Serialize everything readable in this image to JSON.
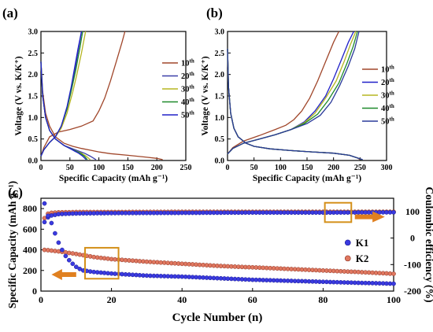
{
  "chart_data": [
    {
      "panel": "(a)",
      "type": "line",
      "xlabel": "Specific Capacity (mAh g⁻¹)",
      "ylabel": "Voltage (V vs. K/K⁺)",
      "xlim": [
        0,
        250
      ],
      "ylim": [
        0,
        3.0
      ],
      "xticks": [
        "0",
        "50",
        "100",
        "150",
        "200",
        "250"
      ],
      "yticks": [
        "0.0",
        "0.5",
        "1.0",
        "1.5",
        "2.0",
        "2.5",
        "3.0"
      ],
      "legend_position": "right-middle",
      "series": [
        {
          "name": "10th",
          "color": "#a0462a",
          "discharge": {
            "x": [
              0,
              3,
              8,
              15,
              25,
              40,
              55,
              70,
              85,
              100,
              120,
              150,
              180,
              200,
              210
            ],
            "y": [
              2.3,
              1.6,
              1.1,
              0.8,
              0.55,
              0.4,
              0.33,
              0.28,
              0.24,
              0.2,
              0.16,
              0.12,
              0.08,
              0.05,
              0.02
            ]
          },
          "charge": {
            "x": [
              0,
              5,
              15,
              30,
              50,
              70,
              90,
              100,
              110,
              120,
              130,
              140,
              145
            ],
            "y": [
              0.1,
              0.3,
              0.55,
              0.66,
              0.72,
              0.8,
              0.92,
              1.15,
              1.45,
              1.85,
              2.3,
              2.75,
              3.0
            ]
          }
        },
        {
          "name": "20th",
          "color": "#3a3fa8",
          "discharge": {
            "x": [
              0,
              3,
              8,
              15,
              25,
              40,
              55,
              65,
              75,
              85,
              95
            ],
            "y": [
              2.3,
              1.5,
              1.0,
              0.7,
              0.5,
              0.35,
              0.27,
              0.22,
              0.17,
              0.1,
              0.02
            ]
          },
          "charge": {
            "x": [
              0,
              5,
              15,
              25,
              35,
              45,
              55,
              60,
              65,
              70
            ],
            "y": [
              0.1,
              0.25,
              0.42,
              0.55,
              0.8,
              1.2,
              1.8,
              2.2,
              2.6,
              3.0
            ]
          }
        },
        {
          "name": "30th",
          "color": "#b5b521",
          "discharge": {
            "x": [
              0,
              3,
              8,
              15,
              25,
              40,
              50,
              60,
              70,
              78,
              85
            ],
            "y": [
              2.3,
              1.5,
              1.0,
              0.7,
              0.5,
              0.35,
              0.28,
              0.22,
              0.17,
              0.1,
              0.02
            ]
          },
          "charge": {
            "x": [
              0,
              5,
              15,
              25,
              35,
              45,
              55,
              62,
              70,
              77
            ],
            "y": [
              0.1,
              0.25,
              0.42,
              0.55,
              0.75,
              1.1,
              1.6,
              2.0,
              2.5,
              3.0
            ]
          }
        },
        {
          "name": "40th",
          "color": "#1f8a2a",
          "discharge": {
            "x": [
              0,
              3,
              8,
              15,
              25,
              40,
              50,
              60,
              68,
              75,
              80
            ],
            "y": [
              2.3,
              1.5,
              1.0,
              0.7,
              0.5,
              0.35,
              0.28,
              0.22,
              0.17,
              0.1,
              0.02
            ]
          },
          "charge": {
            "x": [
              0,
              5,
              15,
              25,
              35,
              45,
              52,
              60,
              67,
              72
            ],
            "y": [
              0.1,
              0.25,
              0.42,
              0.55,
              0.8,
              1.2,
              1.6,
              2.1,
              2.6,
              3.0
            ]
          }
        },
        {
          "name": "50th",
          "color": "#2020c8",
          "discharge": {
            "x": [
              0,
              3,
              8,
              15,
              25,
              40,
              50,
              58,
              65,
              72,
              78
            ],
            "y": [
              2.3,
              1.5,
              1.0,
              0.7,
              0.5,
              0.35,
              0.28,
              0.22,
              0.17,
              0.1,
              0.02
            ]
          },
          "charge": {
            "x": [
              0,
              5,
              15,
              25,
              35,
              45,
              52,
              58,
              64,
              70
            ],
            "y": [
              0.1,
              0.25,
              0.42,
              0.55,
              0.8,
              1.25,
              1.7,
              2.15,
              2.6,
              3.0
            ]
          }
        }
      ]
    },
    {
      "panel": "(b)",
      "type": "line",
      "xlabel": "Specific Capacity (mAh g⁻¹)",
      "ylabel": "Voltage (V vs. K/K⁺)",
      "xlim": [
        0,
        300
      ],
      "ylim": [
        0,
        3.0
      ],
      "xticks": [
        "0",
        "50",
        "100",
        "150",
        "200",
        "250",
        "300"
      ],
      "yticks": [
        "0.0",
        "0.5",
        "1.0",
        "1.5",
        "2.0",
        "2.5",
        "3.0"
      ],
      "legend_position": "right-middle",
      "series": [
        {
          "name": "10th",
          "color": "#a0462a",
          "discharge": {
            "x": [
              0,
              2,
              6,
              12,
              20,
              35,
              50,
              80,
              120,
              160,
              200,
              230,
              245,
              250
            ],
            "y": [
              2.6,
              1.7,
              1.1,
              0.75,
              0.55,
              0.4,
              0.33,
              0.27,
              0.23,
              0.2,
              0.17,
              0.12,
              0.06,
              0.02
            ]
          },
          "charge": {
            "x": [
              0,
              10,
              30,
              60,
              90,
              110,
              125,
              140,
              155,
              170,
              185,
              200,
              210
            ],
            "y": [
              0.15,
              0.3,
              0.45,
              0.58,
              0.72,
              0.82,
              0.95,
              1.15,
              1.45,
              1.85,
              2.3,
              2.75,
              3.0
            ]
          }
        },
        {
          "name": "20th",
          "color": "#2020c8",
          "discharge": {
            "x": [
              0,
              2,
              6,
              12,
              20,
              35,
              50,
              80,
              120,
              160,
              200,
              230,
              245,
              252
            ],
            "y": [
              2.6,
              1.7,
              1.1,
              0.75,
              0.55,
              0.4,
              0.33,
              0.27,
              0.23,
              0.2,
              0.17,
              0.12,
              0.06,
              0.02
            ]
          },
          "charge": {
            "x": [
              0,
              10,
              30,
              60,
              90,
              120,
              145,
              165,
              185,
              200,
              215,
              228,
              238
            ],
            "y": [
              0.15,
              0.28,
              0.4,
              0.5,
              0.6,
              0.72,
              0.9,
              1.15,
              1.5,
              1.9,
              2.35,
              2.75,
              3.0
            ]
          }
        },
        {
          "name": "30th",
          "color": "#b5b521",
          "discharge": {
            "x": [
              0,
              2,
              6,
              12,
              20,
              35,
              50,
              80,
              120,
              160,
              200,
              230,
              245,
              253
            ],
            "y": [
              2.6,
              1.7,
              1.1,
              0.75,
              0.55,
              0.4,
              0.33,
              0.27,
              0.23,
              0.2,
              0.17,
              0.12,
              0.06,
              0.02
            ]
          },
          "charge": {
            "x": [
              0,
              10,
              30,
              60,
              90,
              120,
              145,
              165,
              185,
              205,
              220,
              232,
              242
            ],
            "y": [
              0.15,
              0.28,
              0.4,
              0.5,
              0.6,
              0.72,
              0.88,
              1.1,
              1.45,
              1.85,
              2.3,
              2.7,
              3.0
            ]
          }
        },
        {
          "name": "40th",
          "color": "#1f8a2a",
          "discharge": {
            "x": [
              0,
              2,
              6,
              12,
              20,
              35,
              50,
              80,
              120,
              160,
              200,
              230,
              245,
              254
            ],
            "y": [
              2.6,
              1.7,
              1.1,
              0.75,
              0.55,
              0.4,
              0.33,
              0.27,
              0.23,
              0.2,
              0.17,
              0.12,
              0.06,
              0.02
            ]
          },
          "charge": {
            "x": [
              0,
              10,
              30,
              60,
              90,
              120,
              145,
              170,
              190,
              210,
              225,
              237,
              245
            ],
            "y": [
              0.15,
              0.28,
              0.4,
              0.5,
              0.6,
              0.72,
              0.86,
              1.08,
              1.4,
              1.8,
              2.25,
              2.65,
              3.0
            ]
          }
        },
        {
          "name": "50th",
          "color": "#2a3a9a",
          "discharge": {
            "x": [
              0,
              2,
              6,
              12,
              20,
              35,
              50,
              80,
              120,
              160,
              200,
              230,
              245,
              255
            ],
            "y": [
              2.6,
              1.7,
              1.1,
              0.75,
              0.55,
              0.4,
              0.33,
              0.27,
              0.23,
              0.2,
              0.17,
              0.12,
              0.06,
              0.02
            ]
          },
          "charge": {
            "x": [
              0,
              10,
              30,
              60,
              90,
              120,
              150,
              175,
              195,
              212,
              228,
              240,
              248
            ],
            "y": [
              0.15,
              0.28,
              0.4,
              0.5,
              0.6,
              0.72,
              0.86,
              1.05,
              1.35,
              1.75,
              2.2,
              2.6,
              3.0
            ]
          }
        }
      ]
    },
    {
      "panel": "(c)",
      "type": "scatter",
      "xlabel": "Cycle Number (n)",
      "ylabel": "Specific Capacity (mAh g⁻¹)",
      "y2label": "Coulombic efficiency (%)",
      "xlim": [
        0,
        100
      ],
      "ylim": [
        0,
        900
      ],
      "y2lim": [
        -200,
        150
      ],
      "xticks": [
        "0",
        "20",
        "40",
        "60",
        "80",
        "100"
      ],
      "yticks": [
        "0",
        "200",
        "400",
        "600",
        "800"
      ],
      "y2ticks": [
        "-200",
        "-100",
        "0",
        "100"
      ],
      "legend_position": "right-middle",
      "series": [
        {
          "name": "K1",
          "color": "#3a3ae0",
          "marker_edge": "#1c1c90",
          "capacity_points": [
            [
              1,
              850
            ],
            [
              2,
              730
            ],
            [
              3,
              660
            ],
            [
              4,
              560
            ],
            [
              5,
              470
            ],
            [
              6,
              400
            ],
            [
              7,
              340
            ],
            [
              8,
              300
            ],
            [
              9,
              265
            ],
            [
              10,
              235
            ],
            [
              11,
              215
            ],
            [
              12,
              200
            ],
            [
              15,
              185
            ],
            [
              20,
              170
            ],
            [
              30,
              150
            ],
            [
              40,
              140
            ],
            [
              50,
              125
            ],
            [
              60,
              110
            ],
            [
              70,
              100
            ],
            [
              80,
              90
            ],
            [
              90,
              80
            ],
            [
              100,
              72
            ]
          ],
          "efficiency_points": [
            [
              1,
              60
            ],
            [
              2,
              78
            ],
            [
              3,
              85
            ],
            [
              5,
              90
            ],
            [
              8,
              92
            ],
            [
              12,
              93
            ],
            [
              20,
              94
            ],
            [
              40,
              95
            ],
            [
              60,
              96
            ],
            [
              80,
              96
            ],
            [
              100,
              97
            ]
          ]
        },
        {
          "name": "K2",
          "color": "#e07860",
          "marker_edge": "#8a3020",
          "capacity_points": [
            [
              1,
              400
            ],
            [
              5,
              385
            ],
            [
              10,
              360
            ],
            [
              15,
              330
            ],
            [
              20,
              310
            ],
            [
              30,
              285
            ],
            [
              40,
              265
            ],
            [
              50,
              245
            ],
            [
              60,
              230
            ],
            [
              70,
              215
            ],
            [
              80,
              200
            ],
            [
              90,
              185
            ],
            [
              100,
              168
            ]
          ],
          "efficiency_points": [
            [
              1,
              75
            ],
            [
              2,
              92
            ],
            [
              3,
              95
            ],
            [
              5,
              97
            ],
            [
              10,
              98
            ],
            [
              20,
              98
            ],
            [
              40,
              99
            ],
            [
              60,
              99
            ],
            [
              80,
              99
            ],
            [
              100,
              99
            ]
          ]
        }
      ]
    }
  ],
  "labels": {
    "panel_a": "(a)",
    "panel_b": "(b)",
    "panel_c": "(c)",
    "a_ylabel": "Voltage (V vs. K/K⁺)",
    "a_xlabel": "Specific Capacity (mAh g⁻¹)",
    "b_xlabel": "Specific Capacity (mAh g⁻¹)",
    "c_xlabel": "Cycle Number (n)",
    "c_ylabel": "Specific Capacity (mAh g⁻¹)",
    "c_y2label": "Coulombic efficiency (%)"
  },
  "colors": {
    "highlight_box": "#d4901a",
    "arrow": "#e08020"
  }
}
